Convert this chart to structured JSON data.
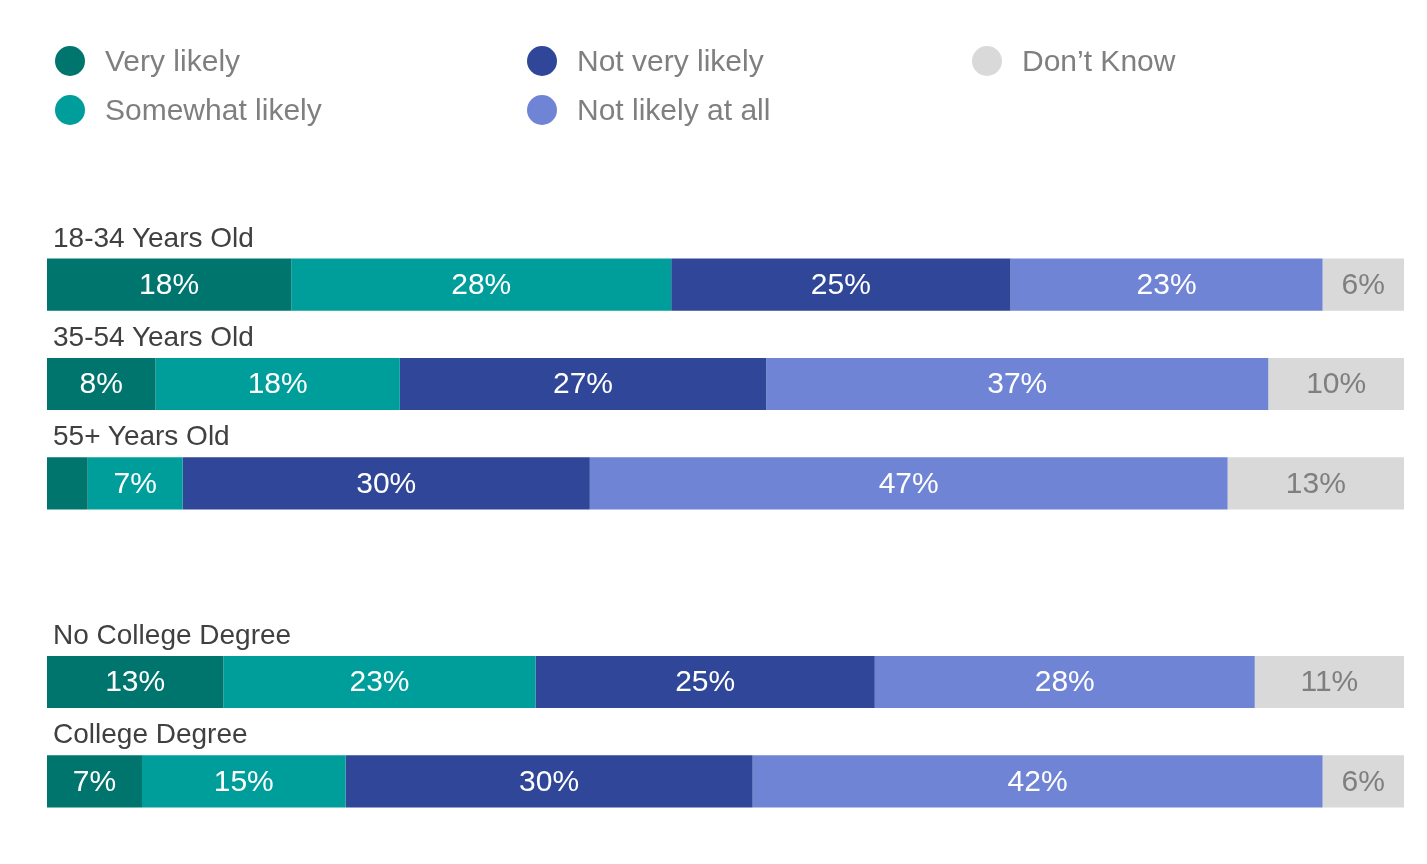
{
  "chart_data": {
    "type": "bar",
    "orientation": "horizontal",
    "stacked": true,
    "categories": [
      "18-34 Years Old",
      "35-54 Years Old",
      "55+ Years Old",
      null,
      "No College Degree",
      "College Degree"
    ],
    "series": [
      {
        "name": "Very likely",
        "color": "#00756e",
        "values": [
          18,
          8,
          3,
          null,
          13,
          7
        ],
        "value_labels": [
          "18%",
          "8%",
          null,
          null,
          "13%",
          "7%"
        ]
      },
      {
        "name": "Somewhat likely",
        "color": "#009e9a",
        "values": [
          28,
          18,
          7,
          null,
          23,
          15
        ],
        "value_labels": [
          "28%",
          "18%",
          "7%",
          null,
          "23%",
          "15%"
        ]
      },
      {
        "name": "Not very likely",
        "color": "#2f4699",
        "values": [
          25,
          27,
          30,
          null,
          25,
          30
        ],
        "value_labels": [
          "25%",
          "27%",
          "30%",
          null,
          "25%",
          "30%"
        ]
      },
      {
        "name": "Not likely at all",
        "color": "#7084d6",
        "values": [
          23,
          37,
          47,
          null,
          28,
          42
        ],
        "value_labels": [
          "23%",
          "37%",
          "47%",
          null,
          "28%",
          "42%"
        ]
      },
      {
        "name": "Don’t Know",
        "color": "#d9d9d9",
        "values": [
          6,
          10,
          13,
          null,
          11,
          6
        ],
        "value_labels": [
          "6%",
          "10%",
          "13%",
          null,
          "11%",
          "6%"
        ]
      }
    ],
    "xlim": [
      0,
      100
    ],
    "legend": "top left",
    "tick_labels": "y"
  }
}
